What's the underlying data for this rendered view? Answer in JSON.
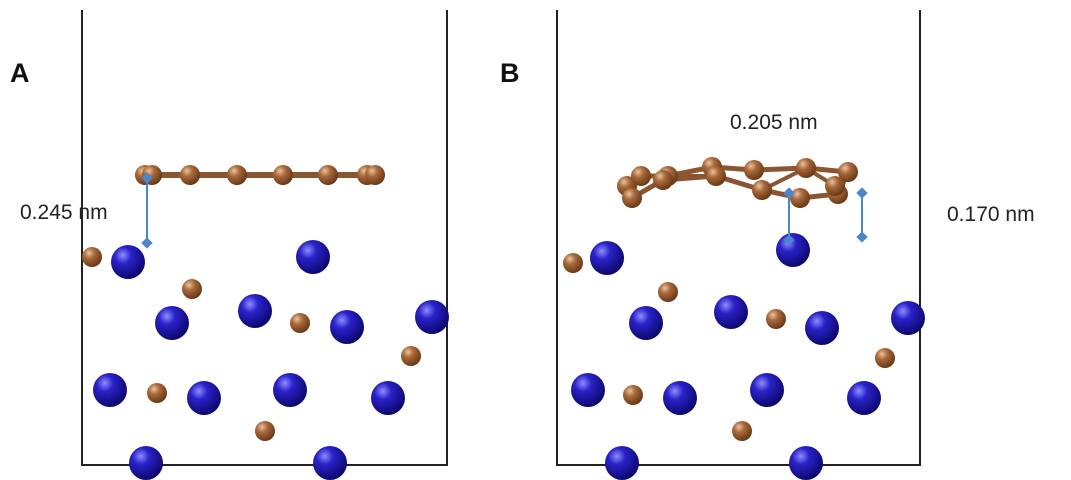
{
  "panels": [
    {
      "label": "A",
      "annotations": [
        "0.245 nm"
      ]
    },
    {
      "label": "B",
      "annotations": [
        "0.205 nm",
        "0.170 nm"
      ]
    }
  ]
}
